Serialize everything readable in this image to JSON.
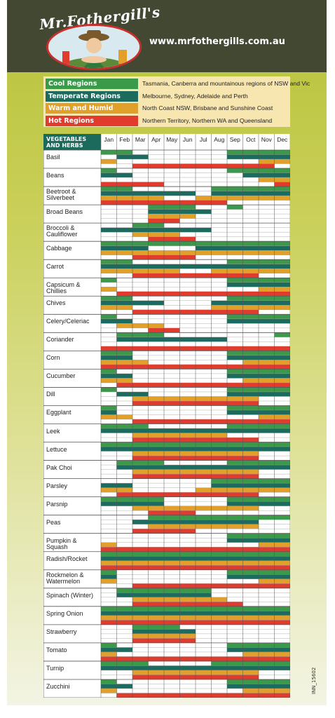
{
  "brand": "Mr.Fothergill's",
  "website": "www.mrfothergills.com.au",
  "legend": [
    {
      "region": "Cool Regions",
      "color": "#3a9a4a",
      "description": "Tasmania, Canberra and mountainous regions of NSW and Vic"
    },
    {
      "region": "Temperate Regions",
      "color": "#1d6a5e",
      "description": "Melbourne, Sydney, Adelaide and Perth"
    },
    {
      "region": "Warm and Humid Regions",
      "color": "#e0a02a",
      "description": "North Coast NSW, Brisbane and Sunshine Coast"
    },
    {
      "region": "Hot Regions",
      "color": "#e13b2e",
      "description": "Northern Territory, Northern WA and Queensland"
    }
  ],
  "table_header": "VEGETABLES AND HERBS",
  "months": [
    "Jan",
    "Feb",
    "Mar",
    "Apr",
    "May",
    "Jun",
    "Jul",
    "Aug",
    "Sep",
    "Oct",
    "Nov",
    "Dec"
  ],
  "vegetables": [
    {
      "name": "Basil",
      "rows": [
        "110000001111",
        "011000001111",
        "100000000011",
        "001111111110"
      ]
    },
    {
      "name": "Beans",
      "rows": [
        "100000001111",
        "110000000111",
        "000000000011",
        "111100000001"
      ]
    },
    {
      "name": "Beetroot & Silverbeet",
      "rows": [
        "110000011111",
        "111111011111",
        "111100111111",
        "111111110000"
      ]
    },
    {
      "name": "Broad Beans",
      "rows": [
        "000111001000",
        "000111100000",
        "000111000000",
        "000110000000"
      ]
    },
    {
      "name": "Broccoli & Cauliflower",
      "rows": [
        "001100000000",
        "111111100000",
        "001110000000",
        "000111000000"
      ]
    },
    {
      "name": "Cabbage",
      "rows": [
        "111111111111",
        "111000111111",
        "111111111111",
        "001111000000"
      ]
    },
    {
      "name": "Carrot",
      "rows": [
        "110000001111",
        "111111111111",
        "111110011111",
        "001111111100"
      ]
    },
    {
      "name": "Capsicum & Chillies",
      "rows": [
        "100000001111",
        "000000001111",
        "100000000011",
        "011111111111"
      ]
    },
    {
      "name": "Chives",
      "rows": [
        "110000001111",
        "111100011111",
        "110000011111",
        "001111111100"
      ]
    },
    {
      "name": "Celery/Celeriac",
      "rows": [
        "100000001111",
        "110000001111",
        "011100000000",
        "000110000000"
      ]
    },
    {
      "name": "Coriander",
      "rows": [
        "011100000001",
        "011111110000",
        "000000000000",
        "111111111111"
      ]
    },
    {
      "name": "Corn",
      "rows": [
        "110000001111",
        "110000001111",
        "111000000111",
        "111111111111"
      ]
    },
    {
      "name": "Cucumber",
      "rows": [
        "100000001111",
        "110000001111",
        "110000000111",
        "011111111111"
      ]
    },
    {
      "name": "Dill",
      "rows": [
        "100000001111",
        "011000001111",
        "001111111100",
        "001111111100"
      ]
    },
    {
      "name": "Eggplant",
      "rows": [
        "100000001111",
        "100000001111",
        "110000000011",
        "001111111111"
      ]
    },
    {
      "name": "Leek",
      "rows": [
        "111000001111",
        "111111111111",
        "001111110000",
        "001111111100"
      ]
    },
    {
      "name": "Lettuce",
      "rows": [
        "111111111111",
        "111111111111",
        "001111111100",
        "001111111100"
      ]
    },
    {
      "name": "Pak Choi",
      "rows": [
        "011100001111",
        "011111111111",
        "001111111100",
        "001111111100"
      ]
    },
    {
      "name": "Parsley",
      "rows": [
        "000000011111",
        "110000011111",
        "110000111111",
        "011111111100"
      ]
    },
    {
      "name": "Parsnip",
      "rows": [
        "111100001111",
        "111100001111",
        "001111111100",
        "000111000000"
      ]
    },
    {
      "name": "Peas",
      "rows": [
        "000111111111",
        "001111111100",
        "000111111100",
        "001111000000"
      ]
    },
    {
      "name": "Pumpkin & Squash",
      "rows": [
        "000000001111",
        "000000001111",
        "100000000011",
        "111111111111"
      ]
    },
    {
      "name": "Radish/Rocket",
      "rows": [
        "111111111111",
        "111111111111",
        "111111111111",
        "111111111111"
      ]
    },
    {
      "name": "Rockmelon & Watermelon",
      "rows": [
        "100000001111",
        "100000001111",
        "100000000011",
        "001111111111"
      ]
    },
    {
      "name": "Spinach (Winter)",
      "rows": [
        "011111100000",
        "011111100000",
        "001111110000",
        "001111111000"
      ]
    },
    {
      "name": "Spring Onion",
      "rows": [
        "111111111111",
        "111111111111",
        "111111111111",
        "111111111111"
      ]
    },
    {
      "name": "Strawberry",
      "rows": [
        "001110000000",
        "001111000000",
        "001111000000",
        "001111000000"
      ]
    },
    {
      "name": "Tomato",
      "rows": [
        "100000001111",
        "110000001111",
        "100000000111",
        "111111111111"
      ]
    },
    {
      "name": "Turnip",
      "rows": [
        "111000011111",
        "111111111111",
        "001111111100",
        "001111111100"
      ]
    },
    {
      "name": "Zucchini",
      "rows": [
        "100000001111",
        "110000001111",
        "100000000111",
        "011111111111"
      ]
    }
  ],
  "code": "INN_15602"
}
